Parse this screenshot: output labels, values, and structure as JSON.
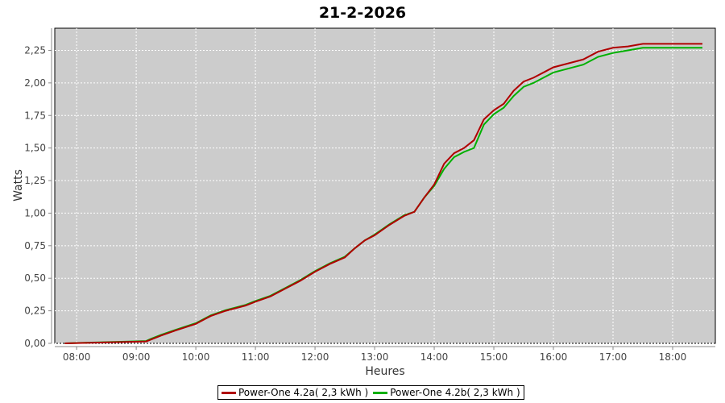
{
  "chart_data": {
    "type": "line",
    "title": "21-2-2026",
    "xlabel": "Heures",
    "ylabel": "Watts",
    "xlim": [
      "07:38",
      "18:43"
    ],
    "ylim": [
      0,
      2.42
    ],
    "grid": true,
    "legend_position": "bottom",
    "x_ticks": [
      "08:00",
      "09:00",
      "10:00",
      "11:00",
      "12:00",
      "13:00",
      "14:00",
      "15:00",
      "16:00",
      "17:00",
      "18:00"
    ],
    "y_ticks": [
      "0,00",
      "0,25",
      "0,50",
      "0,75",
      "1,00",
      "1,25",
      "1,50",
      "1,75",
      "2,00",
      "2,25"
    ],
    "background": "#cccccc",
    "series": [
      {
        "name": "Power-One 4.2a( 2,3 kWh )",
        "color": "#b00000",
        "x": [
          "07:48",
          "08:15",
          "08:45",
          "09:10",
          "09:15",
          "09:25",
          "09:40",
          "10:00",
          "10:15",
          "10:30",
          "10:50",
          "11:00",
          "11:15",
          "11:30",
          "11:45",
          "12:00",
          "12:15",
          "12:30",
          "12:40",
          "12:50",
          "13:00",
          "13:15",
          "13:30",
          "13:40",
          "13:50",
          "14:00",
          "14:10",
          "14:20",
          "14:30",
          "14:40",
          "14:50",
          "15:00",
          "15:10",
          "15:20",
          "15:30",
          "15:40",
          "15:50",
          "16:00",
          "16:15",
          "16:30",
          "16:45",
          "17:00",
          "17:15",
          "17:30",
          "18:30"
        ],
        "y": [
          0,
          0.005,
          0.01,
          0.015,
          0.03,
          0.06,
          0.1,
          0.15,
          0.21,
          0.25,
          0.29,
          0.32,
          0.36,
          0.42,
          0.48,
          0.55,
          0.61,
          0.66,
          0.73,
          0.79,
          0.83,
          0.91,
          0.98,
          1.01,
          1.12,
          1.22,
          1.38,
          1.46,
          1.5,
          1.56,
          1.72,
          1.79,
          1.84,
          1.94,
          2.01,
          2.04,
          2.08,
          2.12,
          2.15,
          2.18,
          2.24,
          2.27,
          2.28,
          2.3,
          2.3
        ]
      },
      {
        "name": "Power-One 4.2b( 2,3 kWh )",
        "color": "#00b000",
        "x": [
          "07:48",
          "08:15",
          "08:45",
          "09:10",
          "09:15",
          "09:25",
          "09:40",
          "10:00",
          "10:15",
          "10:30",
          "10:50",
          "11:00",
          "11:15",
          "11:30",
          "11:45",
          "12:00",
          "12:15",
          "12:30",
          "12:40",
          "12:50",
          "13:00",
          "13:15",
          "13:30",
          "13:40",
          "13:50",
          "14:00",
          "14:10",
          "14:20",
          "14:30",
          "14:40",
          "14:50",
          "15:00",
          "15:10",
          "15:20",
          "15:30",
          "15:40",
          "15:50",
          "16:00",
          "16:15",
          "16:30",
          "16:45",
          "17:00",
          "17:15",
          "17:30",
          "18:30"
        ],
        "y": [
          0,
          0.006,
          0.012,
          0.018,
          0.035,
          0.065,
          0.105,
          0.155,
          0.215,
          0.255,
          0.295,
          0.325,
          0.365,
          0.425,
          0.485,
          0.555,
          0.615,
          0.665,
          0.73,
          0.79,
          0.835,
          0.915,
          0.985,
          1.01,
          1.12,
          1.21,
          1.34,
          1.43,
          1.47,
          1.5,
          1.68,
          1.76,
          1.81,
          1.9,
          1.97,
          2.0,
          2.04,
          2.08,
          2.11,
          2.14,
          2.2,
          2.23,
          2.25,
          2.27,
          2.27
        ]
      }
    ]
  }
}
